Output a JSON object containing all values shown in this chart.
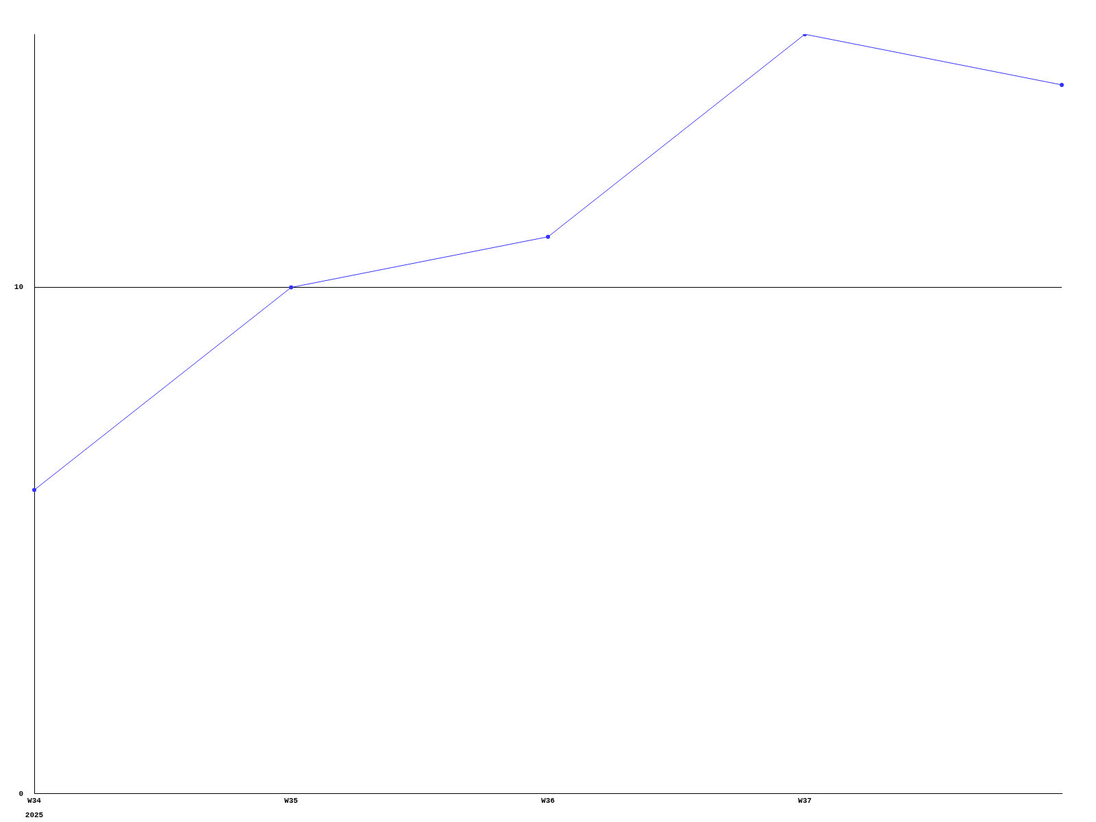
{
  "chart_data": {
    "type": "line",
    "categories": [
      "W34",
      "W35",
      "W36",
      "W37",
      null
    ],
    "series": [
      {
        "color": "#3333ff",
        "values": [
          6,
          10,
          11,
          15,
          14
        ]
      }
    ],
    "ylim": [
      0,
      15
    ],
    "yticks": [
      0,
      10
    ],
    "grid": "y",
    "legend": false,
    "marker": "circle",
    "line_style": "solid",
    "annotations": [
      "2025"
    ]
  }
}
